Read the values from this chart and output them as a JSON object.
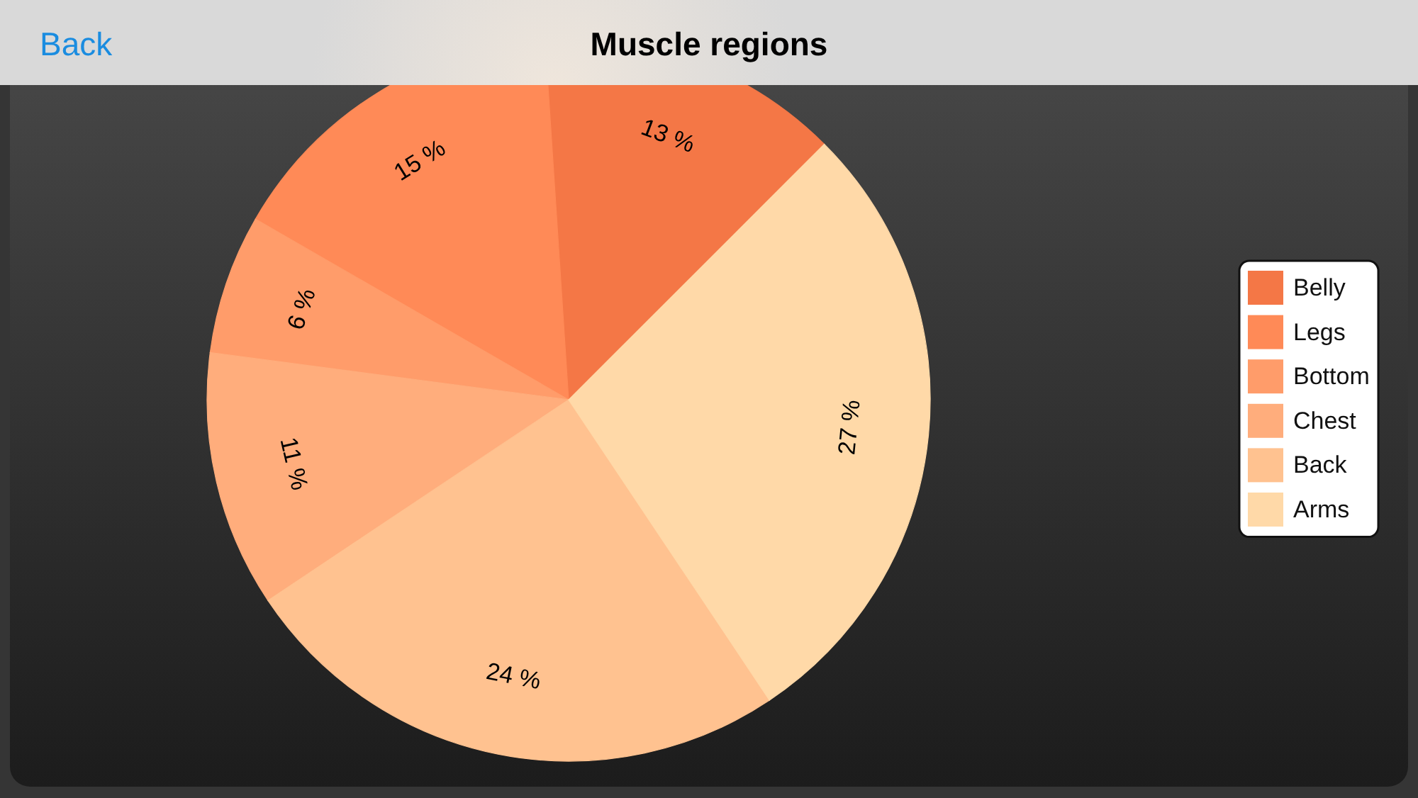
{
  "chart_data": {
    "type": "pie",
    "title": "Muscle regions",
    "categories": [
      "Belly",
      "Legs",
      "Bottom",
      "Chest",
      "Back",
      "Arms"
    ],
    "values": [
      13,
      15,
      6,
      11,
      24,
      27
    ],
    "colors": [
      "#f47746",
      "#ff8a57",
      "#ff9c6a",
      "#ffad7c",
      "#ffc290",
      "#ffd9a8"
    ],
    "value_labels": [
      "13 %",
      "15 %",
      "6 %",
      "11 %",
      "24 %",
      "27 %"
    ],
    "legend": "right",
    "annotations": [
      "Back"
    ]
  }
}
